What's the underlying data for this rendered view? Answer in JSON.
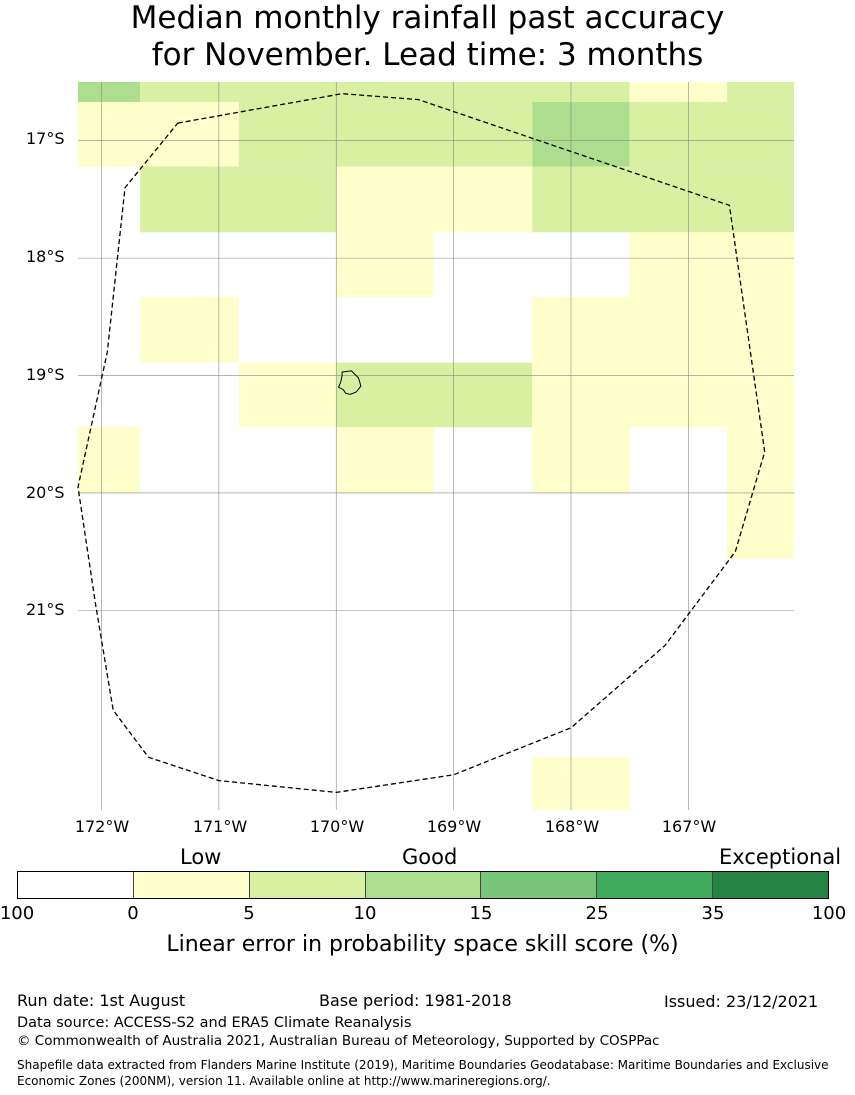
{
  "title_line1": "Median monthly rainfall past accuracy",
  "title_line2": "for November. Lead time: 3 months",
  "map": {
    "lat_labels": [
      "17°S",
      "18°S",
      "19°S",
      "20°S",
      "21°S"
    ],
    "lon_labels": [
      "172°W",
      "171°W",
      "170°W",
      "169°W",
      "168°W",
      "167°W"
    ],
    "lon_range": [
      -172.2,
      -166.1
    ],
    "lat_range": [
      -22.7,
      -16.5
    ],
    "grid_lons": [
      -172,
      -171,
      -170,
      -169,
      -168,
      -167
    ],
    "grid_lats": [
      -17,
      -18,
      -19,
      -20,
      -21
    ],
    "cells": [
      {
        "lon0": -172.2,
        "lon1": -171.67,
        "lat0": -16.67,
        "lat1": -16.5,
        "cat": 3
      },
      {
        "lon0": -171.67,
        "lon1": -167.5,
        "lat0": -16.67,
        "lat1": -16.5,
        "cat": 2
      },
      {
        "lon0": -167.5,
        "lon1": -166.67,
        "lat0": -16.67,
        "lat1": -16.5,
        "cat": 1
      },
      {
        "lon0": -166.67,
        "lon1": -166.1,
        "lat0": -16.67,
        "lat1": -16.5,
        "cat": 2
      },
      {
        "lon0": -172.2,
        "lon1": -170.83,
        "lat0": -17.22,
        "lat1": -16.67,
        "cat": 1
      },
      {
        "lon0": -170.83,
        "lon1": -168.33,
        "lat0": -17.22,
        "lat1": -16.67,
        "cat": 2
      },
      {
        "lon0": -168.33,
        "lon1": -167.5,
        "lat0": -17.22,
        "lat1": -16.67,
        "cat": 3
      },
      {
        "lon0": -167.5,
        "lon1": -166.1,
        "lat0": -17.22,
        "lat1": -16.67,
        "cat": 2
      },
      {
        "lon0": -171.67,
        "lon1": -170.0,
        "lat0": -17.78,
        "lat1": -17.22,
        "cat": 2
      },
      {
        "lon0": -170.0,
        "lon1": -168.33,
        "lat0": -17.78,
        "lat1": -17.22,
        "cat": 1
      },
      {
        "lon0": -168.33,
        "lon1": -166.1,
        "lat0": -17.78,
        "lat1": -17.22,
        "cat": 2
      },
      {
        "lon0": -170.0,
        "lon1": -169.17,
        "lat0": -18.33,
        "lat1": -17.78,
        "cat": 1
      },
      {
        "lon0": -167.5,
        "lon1": -166.1,
        "lat0": -18.33,
        "lat1": -17.78,
        "cat": 1
      },
      {
        "lon0": -171.67,
        "lon1": -170.83,
        "lat0": -18.89,
        "lat1": -18.33,
        "cat": 1
      },
      {
        "lon0": -168.33,
        "lon1": -166.1,
        "lat0": -18.89,
        "lat1": -18.33,
        "cat": 1
      },
      {
        "lon0": -170.83,
        "lon1": -170.0,
        "lat0": -19.44,
        "lat1": -18.89,
        "cat": 1
      },
      {
        "lon0": -170.0,
        "lon1": -168.33,
        "lat0": -19.44,
        "lat1": -18.89,
        "cat": 2
      },
      {
        "lon0": -168.33,
        "lon1": -166.1,
        "lat0": -19.44,
        "lat1": -18.89,
        "cat": 1
      },
      {
        "lon0": -172.2,
        "lon1": -171.67,
        "lat0": -20.0,
        "lat1": -19.44,
        "cat": 1
      },
      {
        "lon0": -170.0,
        "lon1": -169.17,
        "lat0": -20.0,
        "lat1": -19.44,
        "cat": 1
      },
      {
        "lon0": -168.33,
        "lon1": -167.5,
        "lat0": -20.0,
        "lat1": -19.44,
        "cat": 1
      },
      {
        "lon0": -166.67,
        "lon1": -166.1,
        "lat0": -20.0,
        "lat1": -19.44,
        "cat": 1
      },
      {
        "lon0": -166.67,
        "lon1": -166.1,
        "lat0": -20.56,
        "lat1": -20.0,
        "cat": 1
      },
      {
        "lon0": -168.33,
        "lon1": -167.5,
        "lat0": -22.7,
        "lat1": -22.25,
        "cat": 1
      }
    ],
    "eez_boundary": [
      [
        -171.35,
        -16.85
      ],
      [
        -169.95,
        -16.6
      ],
      [
        -169.3,
        -16.65
      ],
      [
        -166.65,
        -17.55
      ],
      [
        -166.35,
        -19.65
      ],
      [
        -166.6,
        -20.5
      ],
      [
        -167.2,
        -21.3
      ],
      [
        -168.0,
        -22.0
      ],
      [
        -169.0,
        -22.4
      ],
      [
        -170.0,
        -22.55
      ],
      [
        -171.0,
        -22.45
      ],
      [
        -171.6,
        -22.25
      ],
      [
        -171.9,
        -21.85
      ],
      [
        -172.05,
        -20.95
      ],
      [
        -172.2,
        -19.95
      ],
      [
        -171.95,
        -18.8
      ],
      [
        -171.8,
        -17.4
      ]
    ],
    "island_outline": [
      [
        -169.95,
        -18.97
      ],
      [
        -169.87,
        -18.96
      ],
      [
        -169.81,
        -19.02
      ],
      [
        -169.79,
        -19.09
      ],
      [
        -169.83,
        -19.14
      ],
      [
        -169.88,
        -19.16
      ],
      [
        -169.92,
        -19.15
      ],
      [
        -169.94,
        -19.12
      ],
      [
        -169.98,
        -19.1
      ],
      [
        -169.96,
        -19.05
      ],
      [
        -169.95,
        -19.0
      ]
    ]
  },
  "legend": {
    "colors": [
      "#ffffff",
      "#ffffcc",
      "#d9f0a3",
      "#addd8e",
      "#78c679",
      "#41ab5d",
      "#238443"
    ],
    "ticks": [
      "100",
      "0",
      "5",
      "10",
      "15",
      "25",
      "35",
      "100"
    ],
    "category_low": "Low",
    "category_good": "Good",
    "category_exceptional": "Exceptional",
    "title": "Linear error in probability space skill score (%)"
  },
  "footer": {
    "run_date": "Run date: 1st August",
    "base_period": "Base period: 1981-2018",
    "issued": "Issued: 23/12/2021",
    "data_source": "Data source: ACCESS-S2 and ERA5 Climate Reanalysis",
    "copyright": "© Commonwealth of Australia 2021, Australian Bureau of Meteorology, Supported by COSPPac",
    "shapefile": "Shapefile data extracted from Flanders Marine Institute (2019), Maritime Boundaries Geodatabase: Maritime Boundaries and Exclusive Economic Zones (200NM), version 11. Available online at http://www.marineregions.org/."
  }
}
